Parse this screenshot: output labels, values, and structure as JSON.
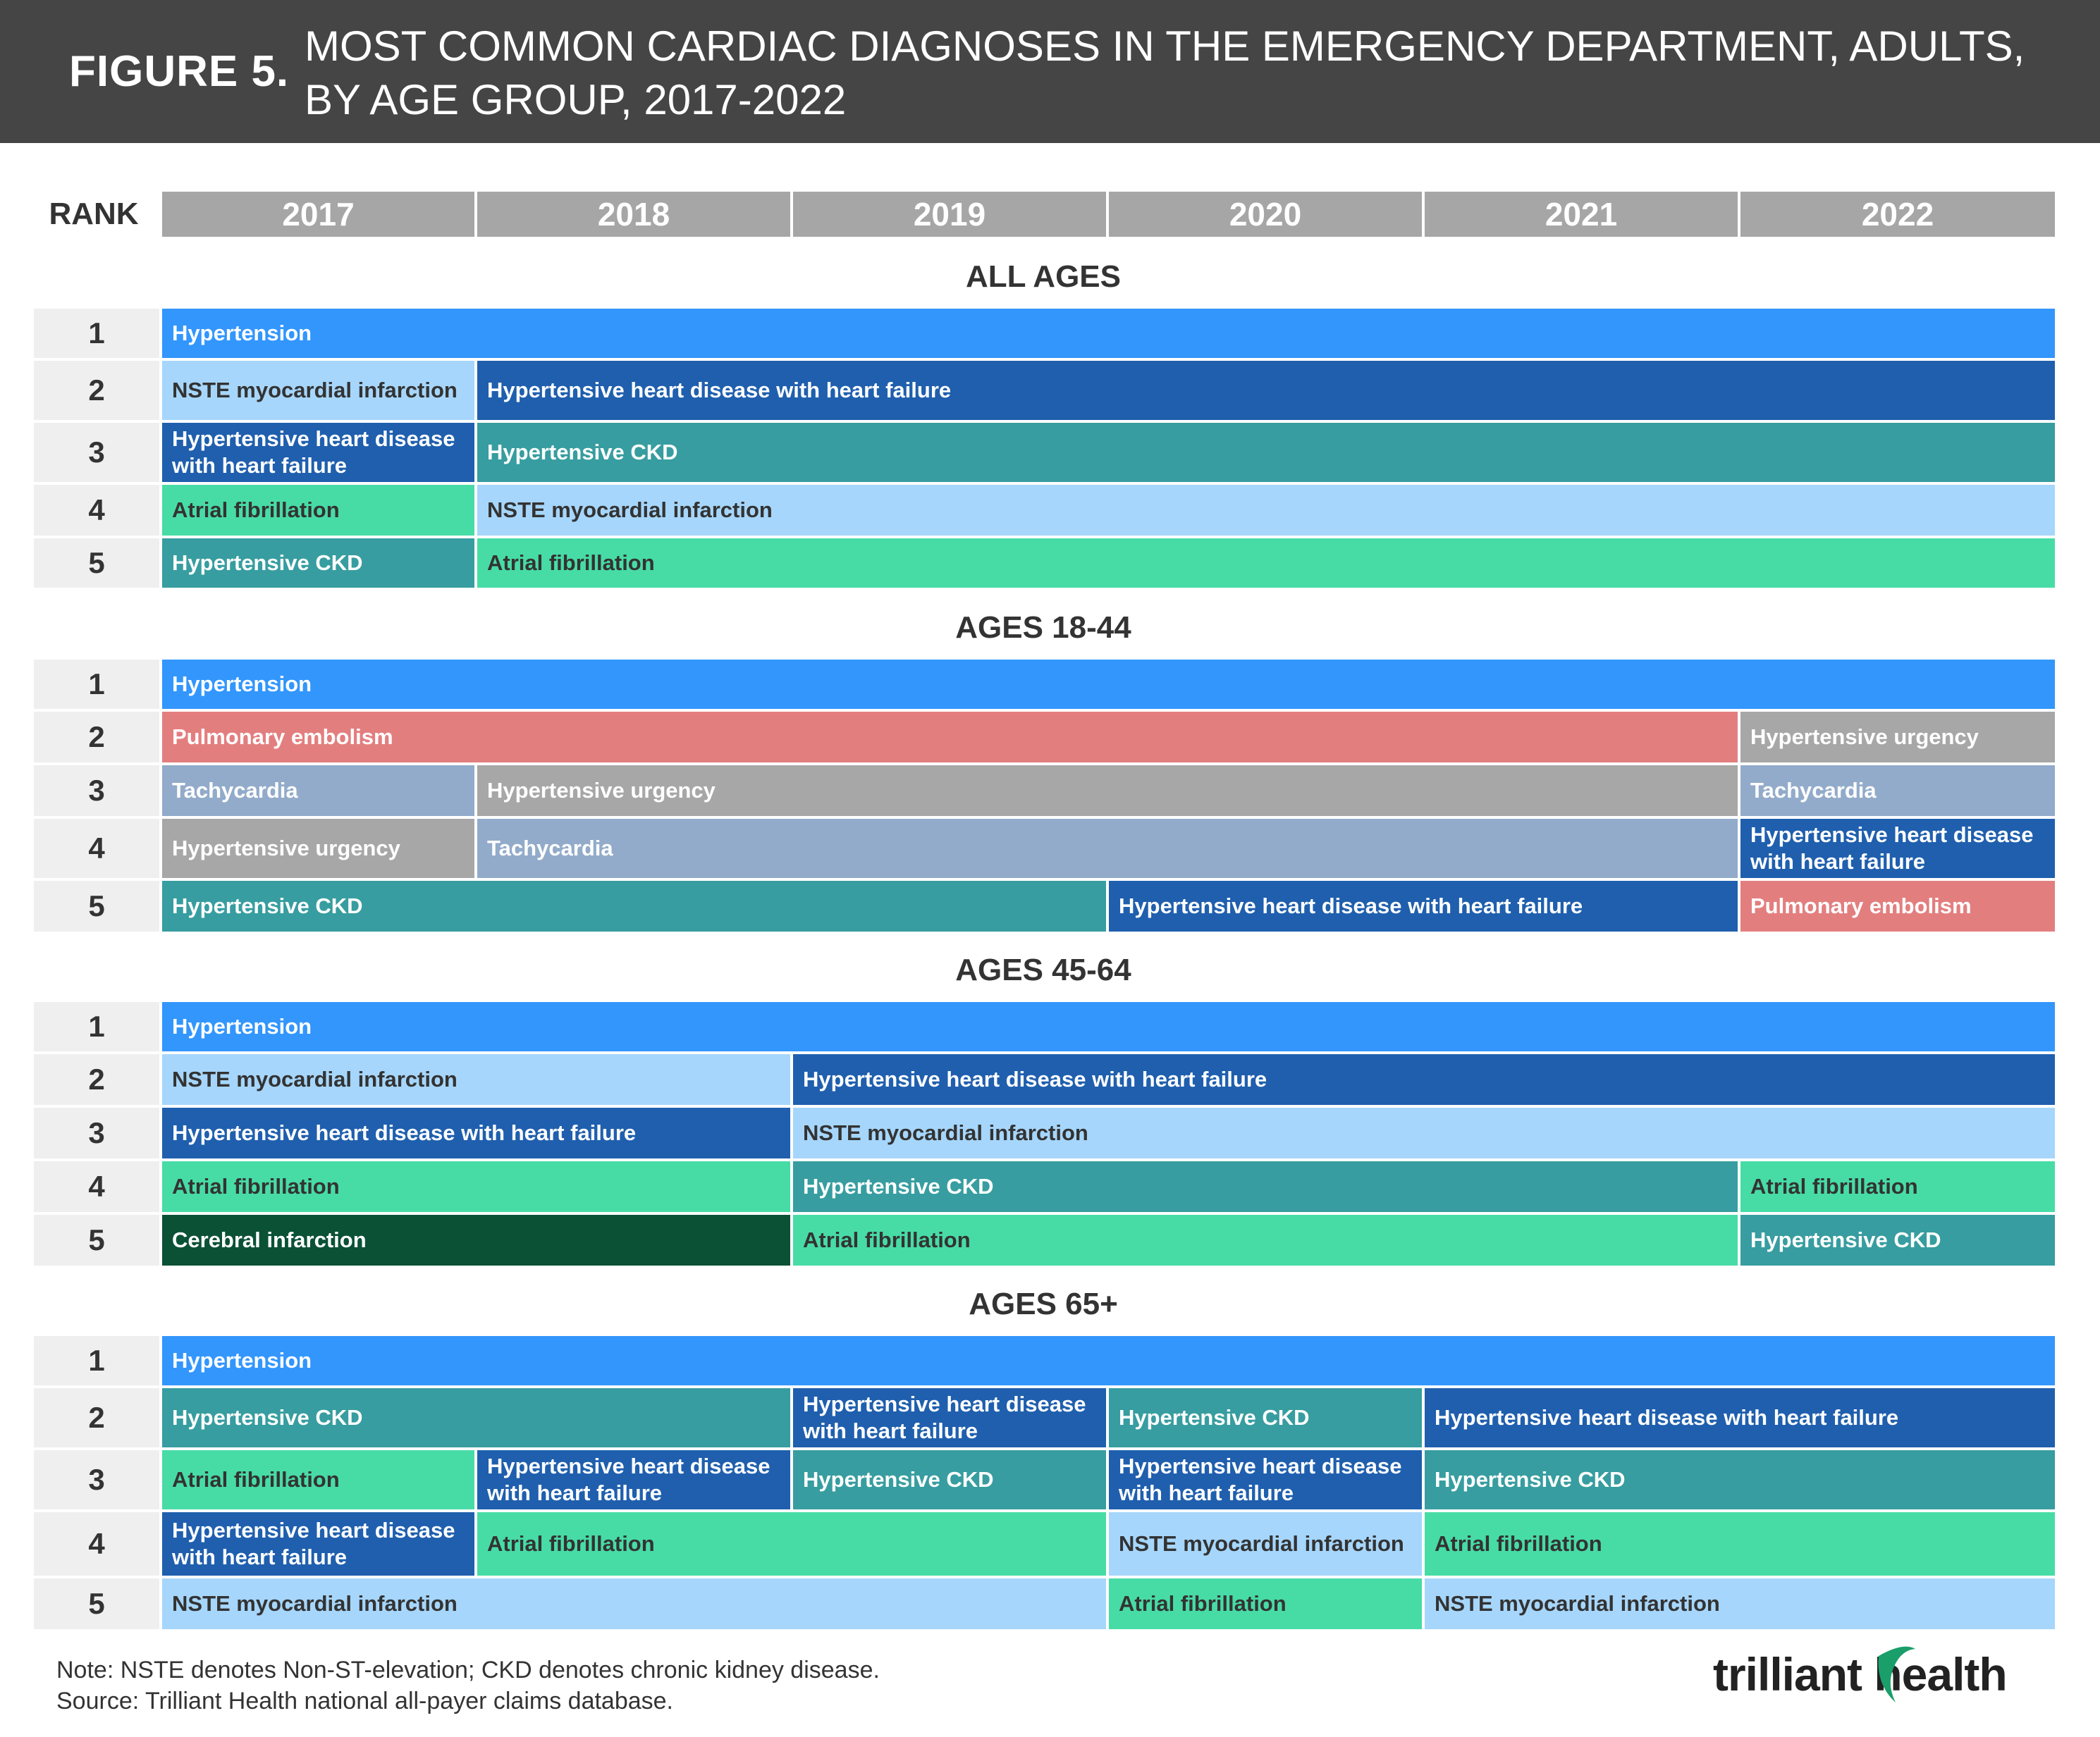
{
  "header": {
    "figure_label": "FIGURE 5.",
    "title": "MOST COMMON CARDIAC DIAGNOSES IN THE EMERGENCY DEPARTMENT, ADULTS, BY AGE GROUP, 2017-2022"
  },
  "colors": {
    "Hypertension": {
      "bg": "#3296fd",
      "fg": "#ffffff"
    },
    "NSTE myocardial infarction": {
      "bg": "#a6d6fc",
      "fg": "#333333"
    },
    "Hypertensive heart disease with heart failure": {
      "bg": "#1f5fae",
      "fg": "#ffffff"
    },
    "Hypertensive CKD": {
      "bg": "#379da0",
      "fg": "#ffffff"
    },
    "Atrial fibrillation": {
      "bg": "#47dca6",
      "fg": "#333333"
    },
    "Pulmonary embolism": {
      "bg": "#e37e7f",
      "fg": "#ffffff"
    },
    "Hypertensive urgency": {
      "bg": "#a7a7a7",
      "fg": "#ffffff"
    },
    "Tachycardia": {
      "bg": "#92abca",
      "fg": "#ffffff"
    },
    "Cerebral infarction": {
      "bg": "#0b5136",
      "fg": "#ffffff"
    }
  },
  "chart_data": {
    "type": "table",
    "rank_label": "RANK",
    "years": [
      "2017",
      "2018",
      "2019",
      "2020",
      "2021",
      "2022"
    ],
    "sections": [
      {
        "title": "ALL AGES",
        "rows": [
          {
            "rank": "1",
            "cells": [
              {
                "label": "Hypertension",
                "start": 0,
                "span": 6
              }
            ]
          },
          {
            "rank": "2",
            "cells": [
              {
                "label": "NSTE myocardial infarction",
                "start": 0,
                "span": 1
              },
              {
                "label": "Hypertensive heart disease with heart failure",
                "start": 1,
                "span": 5
              }
            ]
          },
          {
            "rank": "3",
            "cells": [
              {
                "label": "Hypertensive heart disease with heart failure",
                "start": 0,
                "span": 1
              },
              {
                "label": "Hypertensive CKD",
                "start": 1,
                "span": 5
              }
            ]
          },
          {
            "rank": "4",
            "cells": [
              {
                "label": "Atrial fibrillation",
                "start": 0,
                "span": 1
              },
              {
                "label": "NSTE myocardial infarction",
                "start": 1,
                "span": 5
              }
            ]
          },
          {
            "rank": "5",
            "cells": [
              {
                "label": "Hypertensive CKD",
                "start": 0,
                "span": 1
              },
              {
                "label": "Atrial fibrillation",
                "start": 1,
                "span": 5
              }
            ]
          }
        ]
      },
      {
        "title": "AGES 18-44",
        "rows": [
          {
            "rank": "1",
            "cells": [
              {
                "label": "Hypertension",
                "start": 0,
                "span": 6
              }
            ]
          },
          {
            "rank": "2",
            "cells": [
              {
                "label": "Pulmonary embolism",
                "start": 0,
                "span": 5
              },
              {
                "label": "Hypertensive urgency",
                "start": 5,
                "span": 1
              }
            ]
          },
          {
            "rank": "3",
            "cells": [
              {
                "label": "Tachycardia",
                "start": 0,
                "span": 1
              },
              {
                "label": "Hypertensive urgency",
                "start": 1,
                "span": 4
              },
              {
                "label": "Tachycardia",
                "start": 5,
                "span": 1
              }
            ]
          },
          {
            "rank": "4",
            "cells": [
              {
                "label": "Hypertensive urgency",
                "start": 0,
                "span": 1
              },
              {
                "label": "Tachycardia",
                "start": 1,
                "span": 4
              },
              {
                "label": "Hypertensive heart disease with heart failure",
                "start": 5,
                "span": 1
              }
            ]
          },
          {
            "rank": "5",
            "cells": [
              {
                "label": "Hypertensive CKD",
                "start": 0,
                "span": 3
              },
              {
                "label": "Hypertensive heart disease with heart failure",
                "start": 3,
                "span": 2
              },
              {
                "label": "Pulmonary embolism",
                "start": 5,
                "span": 1
              }
            ]
          }
        ]
      },
      {
        "title": "AGES 45-64",
        "rows": [
          {
            "rank": "1",
            "cells": [
              {
                "label": "Hypertension",
                "start": 0,
                "span": 6
              }
            ]
          },
          {
            "rank": "2",
            "cells": [
              {
                "label": "NSTE myocardial infarction",
                "start": 0,
                "span": 2
              },
              {
                "label": "Hypertensive heart disease with heart failure",
                "start": 2,
                "span": 4
              }
            ]
          },
          {
            "rank": "3",
            "cells": [
              {
                "label": "Hypertensive heart disease with heart failure",
                "start": 0,
                "span": 2
              },
              {
                "label": "NSTE myocardial infarction",
                "start": 2,
                "span": 4
              }
            ]
          },
          {
            "rank": "4",
            "cells": [
              {
                "label": "Atrial fibrillation",
                "start": 0,
                "span": 2
              },
              {
                "label": "Hypertensive CKD",
                "start": 2,
                "span": 3
              },
              {
                "label": "Atrial fibrillation",
                "start": 5,
                "span": 1
              }
            ]
          },
          {
            "rank": "5",
            "cells": [
              {
                "label": "Cerebral infarction",
                "start": 0,
                "span": 2
              },
              {
                "label": "Atrial fibrillation",
                "start": 2,
                "span": 3
              },
              {
                "label": "Hypertensive CKD",
                "start": 5,
                "span": 1
              }
            ]
          }
        ]
      },
      {
        "title": "AGES 65+",
        "rows": [
          {
            "rank": "1",
            "cells": [
              {
                "label": "Hypertension",
                "start": 0,
                "span": 6
              }
            ]
          },
          {
            "rank": "2",
            "cells": [
              {
                "label": "Hypertensive CKD",
                "start": 0,
                "span": 2
              },
              {
                "label": "Hypertensive heart disease with heart failure",
                "start": 2,
                "span": 1
              },
              {
                "label": "Hypertensive CKD",
                "start": 3,
                "span": 1
              },
              {
                "label": "Hypertensive heart disease with heart failure",
                "start": 4,
                "span": 2
              }
            ]
          },
          {
            "rank": "3",
            "cells": [
              {
                "label": "Atrial fibrillation",
                "start": 0,
                "span": 1
              },
              {
                "label": "Hypertensive heart disease with heart failure",
                "start": 1,
                "span": 1
              },
              {
                "label": "Hypertensive CKD",
                "start": 2,
                "span": 1
              },
              {
                "label": "Hypertensive heart disease with heart failure",
                "start": 3,
                "span": 1
              },
              {
                "label": "Hypertensive CKD",
                "start": 4,
                "span": 2
              }
            ]
          },
          {
            "rank": "4",
            "cells": [
              {
                "label": "Hypertensive heart disease with heart failure",
                "start": 0,
                "span": 1
              },
              {
                "label": "Atrial fibrillation",
                "start": 1,
                "span": 2
              },
              {
                "label": "NSTE myocardial infarction",
                "start": 3,
                "span": 1
              },
              {
                "label": "Atrial fibrillation",
                "start": 4,
                "span": 2
              }
            ]
          },
          {
            "rank": "5",
            "cells": [
              {
                "label": "NSTE myocardial infarction",
                "start": 0,
                "span": 3
              },
              {
                "label": "Atrial fibrillation",
                "start": 3,
                "span": 1
              },
              {
                "label": "NSTE myocardial infarction",
                "start": 4,
                "span": 2
              }
            ]
          }
        ]
      }
    ]
  },
  "footer": {
    "note": "Note: NSTE denotes Non-ST-elevation; CKD denotes chronic kidney disease.",
    "source": "Source: Trilliant Health national all-payer claims database.",
    "logo_text": "trilliant health"
  }
}
